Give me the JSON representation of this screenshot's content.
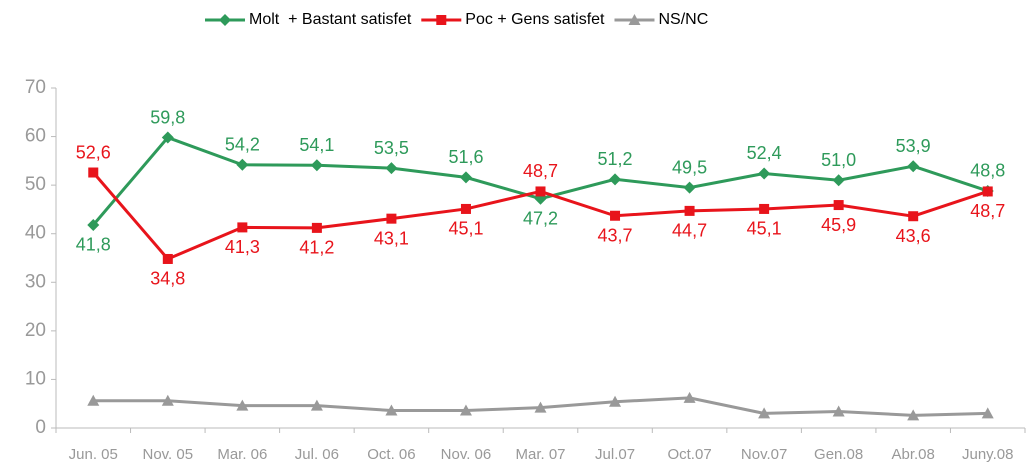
{
  "chart_data": {
    "type": "line",
    "categories": [
      "Jun. 05",
      "Nov. 05",
      "Mar. 06",
      "Jul. 06",
      "Oct. 06",
      "Nov. 06",
      "Mar. 07",
      "Jul.07",
      "Oct.07",
      "Nov.07",
      "Gen.08",
      "Abr.08",
      "Juny.08"
    ],
    "series": [
      {
        "name": "Molt  + Bastant satisfet",
        "color": "#2e9a5a",
        "marker": "diamond",
        "values": [
          41.8,
          59.8,
          54.2,
          54.1,
          53.5,
          51.6,
          47.2,
          51.2,
          49.5,
          52.4,
          51.0,
          53.9,
          48.8
        ],
        "value_labels": [
          "41,8",
          "59,8",
          "54,2",
          "54,1",
          "53,5",
          "51,6",
          "47,2",
          "51,2",
          "49,5",
          "52,4",
          "51,0",
          "53,9",
          "48,8"
        ]
      },
      {
        "name": "Poc + Gens satisfet",
        "color": "#e8141b",
        "marker": "square",
        "values": [
          52.6,
          34.8,
          41.3,
          41.2,
          43.1,
          45.1,
          48.7,
          43.7,
          44.7,
          45.1,
          45.9,
          43.6,
          48.7
        ],
        "value_labels": [
          "52,6",
          "34,8",
          "41,3",
          "41,2",
          "43,1",
          "45,1",
          "48,7",
          "43,7",
          "44,7",
          "45,1",
          "45,9",
          "43,6",
          "48,7"
        ]
      },
      {
        "name": "NS/NC",
        "color": "#999999",
        "marker": "triangle",
        "values": [
          5.6,
          5.6,
          4.6,
          4.6,
          3.6,
          3.6,
          4.2,
          5.4,
          6.2,
          3.0,
          3.4,
          2.6,
          3.0
        ]
      }
    ],
    "ylim": [
      0,
      70
    ],
    "yticks": [
      0,
      10,
      20,
      30,
      40,
      50,
      60,
      70
    ],
    "legend": "top"
  }
}
